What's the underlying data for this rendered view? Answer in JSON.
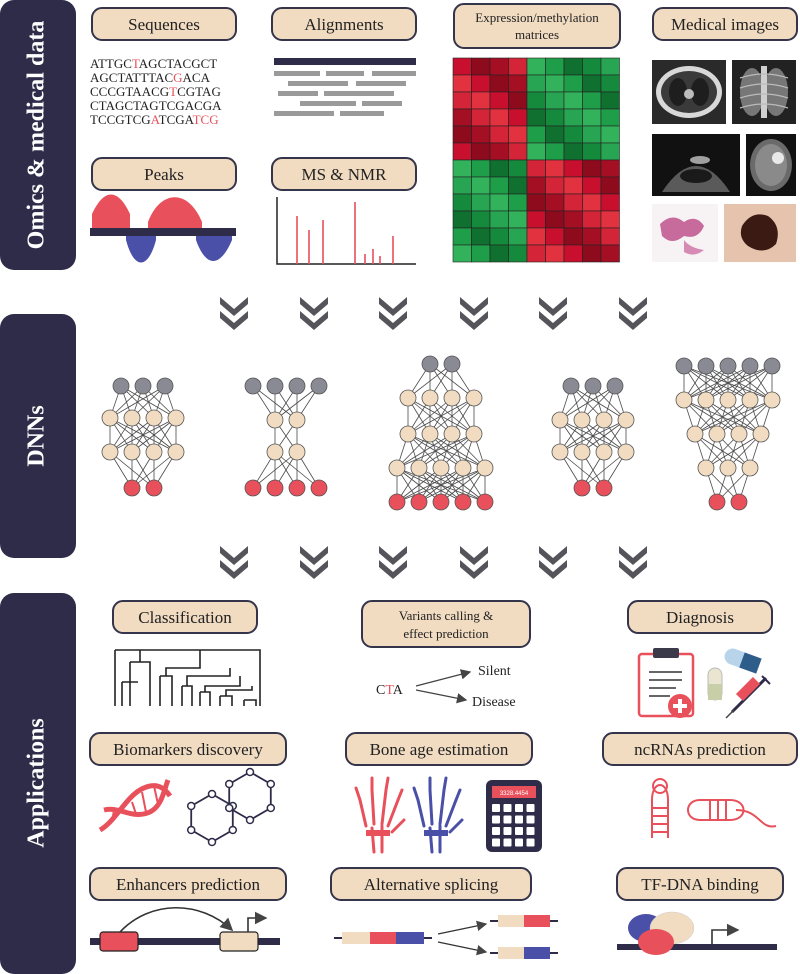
{
  "sections": {
    "omics": "Omics & medical data",
    "dnns": "DNNs",
    "applications": "Applications"
  },
  "data_types": {
    "sequences": "Sequences",
    "alignments": "Alignments",
    "matrices_line1": "Expression/methylation",
    "matrices_line2": "matrices",
    "medical_images": "Medical images",
    "peaks": "Peaks",
    "ms_nmr": "MS & NMR"
  },
  "sequence_lines": [
    [
      {
        "t": "ATTGC",
        "r": false
      },
      {
        "t": "T",
        "r": true
      },
      {
        "t": "AGCTACGCT",
        "r": false
      }
    ],
    [
      {
        "t": "AGCTATTTAC",
        "r": false
      },
      {
        "t": "G",
        "r": true
      },
      {
        "t": "ACA",
        "r": false
      }
    ],
    [
      {
        "t": "CCCGTAACG",
        "r": false
      },
      {
        "t": "T",
        "r": true
      },
      {
        "t": "CGTAG",
        "r": false
      }
    ],
    [
      {
        "t": "CTAGCTAGTCGACGA",
        "r": false
      }
    ],
    [
      {
        "t": "TCCGTCG",
        "r": false
      },
      {
        "t": "A",
        "r": true
      },
      {
        "t": "TCGA",
        "r": false
      },
      {
        "t": "TCG",
        "r": true
      }
    ]
  ],
  "applications": {
    "classification": "Classification",
    "variants_line1": "Variants calling &",
    "variants_line2": "effect prediction",
    "diagnosis": "Diagnosis",
    "biomarkers": "Biomarkers discovery",
    "bone_age": "Bone age estimation",
    "ncrnas": "ncRNAs prediction",
    "enhancers": "Enhancers prediction",
    "splicing": "Alternative splicing",
    "tf_dna": "TF-DNA binding"
  },
  "variant": {
    "codon_left": "C",
    "codon_mid": "T",
    "codon_right": "A",
    "outcome_silent": "Silent",
    "outcome_disease": "Disease"
  },
  "calculator_display": "3328.4454",
  "colors": {
    "band": "#2f2c4a",
    "pill_fill": "#f1dcc2",
    "node_input": "#8a8a94",
    "node_hidden": "#f1dcc2",
    "node_output": "#e8505b",
    "accent_red": "#e8505b",
    "accent_blue": "#4a4fa8"
  },
  "icons": [
    "chevron-down-icon",
    "dendrogram-icon",
    "dna-helix-icon",
    "hexagon-network-icon",
    "hand-xray-icon",
    "calculator-icon",
    "rna-hairpin-icon",
    "clipboard-icon",
    "pill-icon",
    "syringe-icon",
    "tf-protein-icon",
    "gene-promoter-icon"
  ]
}
